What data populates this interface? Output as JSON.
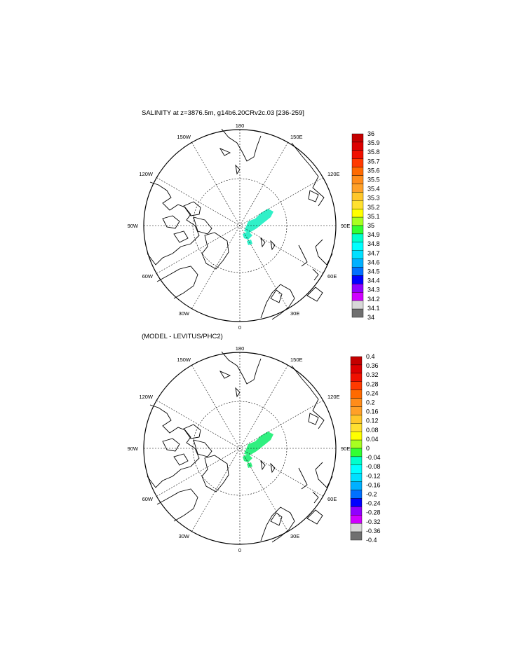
{
  "panels": [
    {
      "title": "SALINITY at z=3876.5m, g14b6.20CRv2c.03 [236-259]",
      "lon_labels": {
        "top": "180",
        "bottom": "0",
        "left": "90W",
        "right": "90E",
        "upper_left_1": "150W",
        "upper_left_2": "120W",
        "upper_right_1": "150E",
        "upper_right_2": "120E",
        "lower_left_1": "60W",
        "lower_left_2": "30W",
        "lower_right_1": "60E",
        "lower_right_2": "30E"
      },
      "colorbar": {
        "labels": [
          "36",
          "35.9",
          "35.8",
          "35.7",
          "35.6",
          "35.5",
          "35.4",
          "35.3",
          "35.2",
          "35.1",
          "35",
          "34.9",
          "34.8",
          "34.7",
          "34.6",
          "34.5",
          "34.4",
          "34.3",
          "34.2",
          "34.1",
          "34"
        ],
        "colors": [
          "#c40000",
          "#dc0000",
          "#f01000",
          "#ff3a00",
          "#ff6a00",
          "#ff8c1a",
          "#ffa028",
          "#ffc72a",
          "#ffe030",
          "#ffff00",
          "#a8ff20",
          "#32ff32",
          "#00ffcc",
          "#00ffff",
          "#00e0ff",
          "#00b0ff",
          "#0070ff",
          "#0000ff",
          "#9000ff",
          "#d000ff",
          "#d8d8d8",
          "#707070"
        ]
      },
      "field_color": "#30f0c8"
    },
    {
      "title": "(MODEL - LEVITUS/PHC2)",
      "lon_labels": {
        "top": "180",
        "bottom": "0",
        "left": "90W",
        "right": "90E",
        "upper_left_1": "150W",
        "upper_left_2": "120W",
        "upper_right_1": "150E",
        "upper_right_2": "120E",
        "lower_left_1": "60W",
        "lower_left_2": "30W",
        "lower_right_1": "60E",
        "lower_right_2": "30E"
      },
      "colorbar": {
        "labels": [
          "0.4",
          "0.36",
          "0.32",
          "0.28",
          "0.24",
          "0.2",
          "0.16",
          "0.12",
          "0.08",
          "0.04",
          "0",
          "-0.04",
          "-0.08",
          "-0.12",
          "-0.16",
          "-0.2",
          "-0.24",
          "-0.28",
          "-0.32",
          "-0.36",
          "-0.4"
        ],
        "colors": [
          "#c40000",
          "#dc0000",
          "#f01000",
          "#ff3a00",
          "#ff6a00",
          "#ff8c1a",
          "#ffa028",
          "#ffc72a",
          "#ffe030",
          "#ffff00",
          "#a8ff20",
          "#32ff32",
          "#00ffcc",
          "#00ffff",
          "#00e0ff",
          "#00b0ff",
          "#0070ff",
          "#0000ff",
          "#9000ff",
          "#d000ff",
          "#d8d8d8",
          "#707070"
        ]
      },
      "field_color": "#30f080"
    }
  ]
}
